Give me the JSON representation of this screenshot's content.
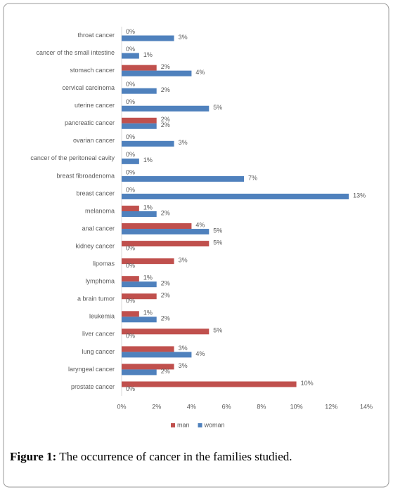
{
  "chart_data": {
    "type": "bar",
    "orientation": "horizontal",
    "categories": [
      "throat cancer",
      "cancer of the small intestine",
      "stomach cancer",
      "cervical carcinoma",
      "uterine cancer",
      "pancreatic cancer",
      "ovarian cancer",
      "cancer of the peritoneal cavity",
      "breast fibroadenoma",
      "breast cancer",
      "melanoma",
      "anal cancer",
      "kidney cancer",
      "lipomas",
      "lymphoma",
      "a brain tumor",
      "leukemia",
      "liver cancer",
      "lung cancer",
      "laryngeal cancer",
      "prostate cancer"
    ],
    "series": [
      {
        "name": "man",
        "color": "#c0504d",
        "values": [
          0,
          0,
          2,
          0,
          0,
          2,
          0,
          0,
          0,
          0,
          1,
          4,
          5,
          3,
          1,
          2,
          1,
          5,
          3,
          3,
          10
        ],
        "value_labels": [
          "0%",
          "0%",
          "2%",
          "0%",
          "0%",
          "2%",
          "0%",
          "0%",
          "0%",
          "0%",
          "1%",
          "4%",
          "5%",
          "3%",
          "1%",
          "2%",
          "1%",
          "5%",
          "3%",
          "3%",
          "10%"
        ]
      },
      {
        "name": "woman",
        "color": "#4f81bd",
        "values": [
          3,
          1,
          4,
          2,
          5,
          2,
          3,
          1,
          7,
          13,
          2,
          5,
          0,
          0,
          2,
          0,
          2,
          0,
          4,
          2,
          0
        ],
        "value_labels": [
          "3%",
          "1%",
          "4%",
          "2%",
          "5%",
          "2%",
          "3%",
          "1%",
          "7%",
          "13%",
          "2%",
          "5%",
          "0%",
          "0%",
          "2%",
          "0%",
          "2%",
          "0%",
          "4%",
          "2%",
          "0%"
        ]
      }
    ],
    "xlim": [
      0,
      14
    ],
    "xticks": [
      {
        "value": 0,
        "label": "0%"
      },
      {
        "value": 2,
        "label": "2%"
      },
      {
        "value": 4,
        "label": "4%"
      },
      {
        "value": 6,
        "label": "6%"
      },
      {
        "value": 8,
        "label": "8%"
      },
      {
        "value": 10,
        "label": "10%"
      },
      {
        "value": 12,
        "label": "12%"
      },
      {
        "value": 14,
        "label": "14%"
      }
    ],
    "grid": false,
    "legend": "bottom"
  },
  "caption": {
    "label": "Figure 1:",
    "text": "The occurrence of cancer in the families studied."
  }
}
